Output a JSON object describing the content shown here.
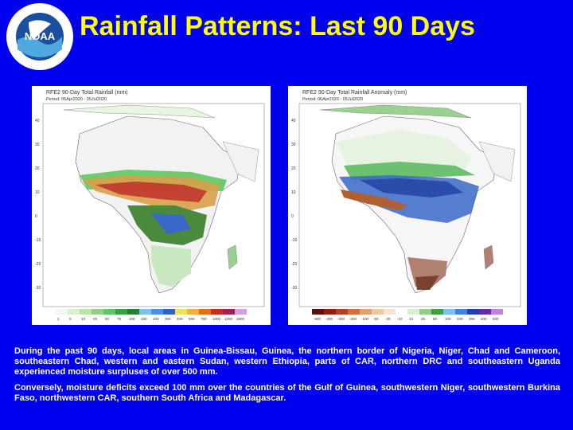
{
  "slide": {
    "title": "Rainfall Patterns: Last 90 Days",
    "logo": {
      "icon": "noaa-logo",
      "ring_text": "NATIONAL OCEANIC AND ATMOSPHERIC ADMINISTRATION · U.S. DEPARTMENT OF COMMERCE",
      "center_text": "NOAA"
    }
  },
  "maps": [
    {
      "title": "RFE2 90-Day Total Rainfall (mm)",
      "subtitle": "Period: 06Apr2020 - 05Jul2020",
      "legend_ticks": [
        "2",
        "5",
        "10",
        "25",
        "50",
        "75",
        "100",
        "150",
        "200",
        "300",
        "400",
        "500",
        "750",
        "1000",
        "1250",
        "1500"
      ]
    },
    {
      "title": "RFE2 90-Day Total Rainfall Anomaly (mm)",
      "subtitle": "Period: 06Apr2020 - 05Jul2020",
      "legend_ticks": [
        "-500",
        "-400",
        "-300",
        "-200",
        "-100",
        "-50",
        "-25",
        "-10",
        "10",
        "25",
        "50",
        "100",
        "200",
        "300",
        "400",
        "500"
      ]
    }
  ],
  "paragraphs": [
    "During the past 90 days, local areas in Guinea-Bissau, Guinea, the northern border of Nigeria, Niger, Chad and Cameroon, southeastern Chad, western and eastern Sudan, western Ethiopia, parts of CAR, northern DRC and southeastern Uganda experienced moisture surpluses of over 500 mm.",
    "Conversely, moisture deficits exceed 100 mm over the countries of the Gulf of Guinea, southwestern Niger, southwestern Burkina Faso, northwestern CAR, southern South Africa and Madagascar."
  ],
  "colors": {
    "background": "#0000f0",
    "title": "#ffff00",
    "text": "#ffffff"
  }
}
